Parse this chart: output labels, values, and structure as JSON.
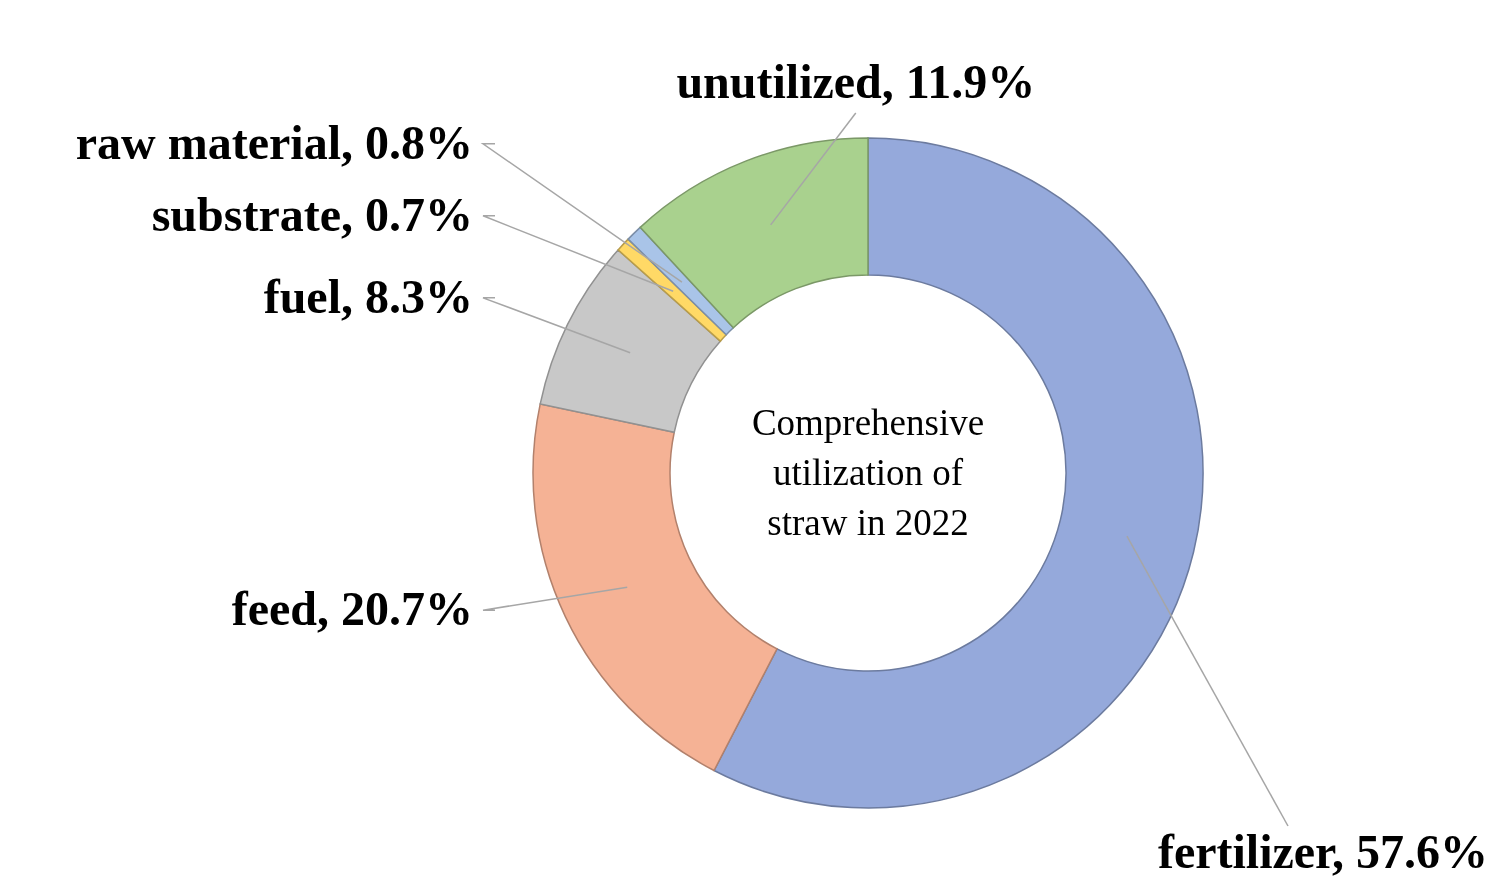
{
  "chart_data": {
    "type": "donut",
    "title": "Comprehensive utilization of straw in 2022",
    "categories": [
      "fertilizer",
      "feed",
      "fuel",
      "substrate",
      "raw material",
      "unutilized"
    ],
    "values": [
      57.6,
      20.7,
      8.3,
      0.7,
      0.8,
      11.9
    ],
    "value_labels": [
      "57.6%",
      "20.7%",
      "8.3%",
      "0.7%",
      "0.8%",
      "11.9%"
    ],
    "colors": [
      "#95a9db",
      "#f5b295",
      "#c8c8c8",
      "#ffd966",
      "#a9c4e8",
      "#a9d18e"
    ]
  }
}
